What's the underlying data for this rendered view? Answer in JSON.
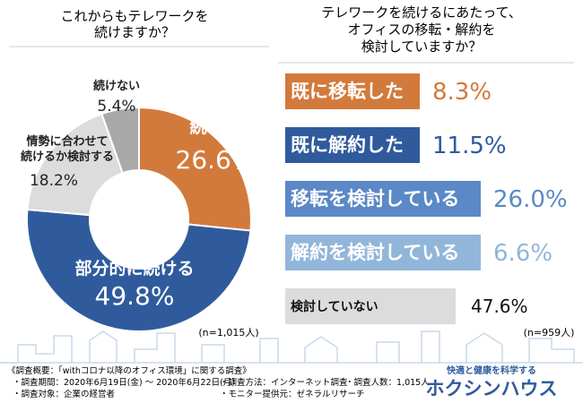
{
  "chart_data": [
    {
      "type": "pie",
      "title": "これからもテレワークを\n続けますか？",
      "categories": [
        "続ける",
        "部分的に続ける",
        "情勢に合わせて\n続けるか検討する",
        "続けない"
      ],
      "values": [
        26.6,
        49.8,
        18.2,
        5.4
      ],
      "value_labels": [
        "26.6%",
        "49.8%",
        "18.2%",
        "5.4%"
      ],
      "colors": [
        "#d27a3c",
        "#2f5b9d",
        "#dcdcdc",
        "#a9a9a9"
      ],
      "note": "(n=1,015人)"
    },
    {
      "type": "label-list",
      "title": "テレワークを続けるにあたって、\nオフィスの移転・解約を\n検討していますか？",
      "categories": [
        "既に移転した",
        "既に解約した",
        "移転を検討している",
        "解約を検討している",
        "検討していない"
      ],
      "values": [
        8.3,
        11.5,
        26.0,
        6.6,
        47.6
      ],
      "value_labels": [
        "8.3%",
        "11.5%",
        "26.0%",
        "6.6%",
        "47.6%"
      ],
      "colors": [
        "#d27a3c",
        "#2f5b9d",
        "#5b88c6",
        "#92b6da",
        "#dcdcdc"
      ],
      "note": "(n=959人)"
    }
  ],
  "survey": {
    "title": "《調査概要：「withコロナ以降のオフィス環境」に関する調査》",
    "items": [
      "・調査期間：2020年6月19日(金) ～ 2020年6月22日(月)",
      "・調査方法：インターネット調査",
      "・調査人数：1,015人",
      "・調査対象：企業の経営者",
      "・モニター提供元：ゼネラルリサーチ"
    ]
  },
  "logo": {
    "tagline": "快適と健康を科学する",
    "name": "ホクシンハウス"
  }
}
